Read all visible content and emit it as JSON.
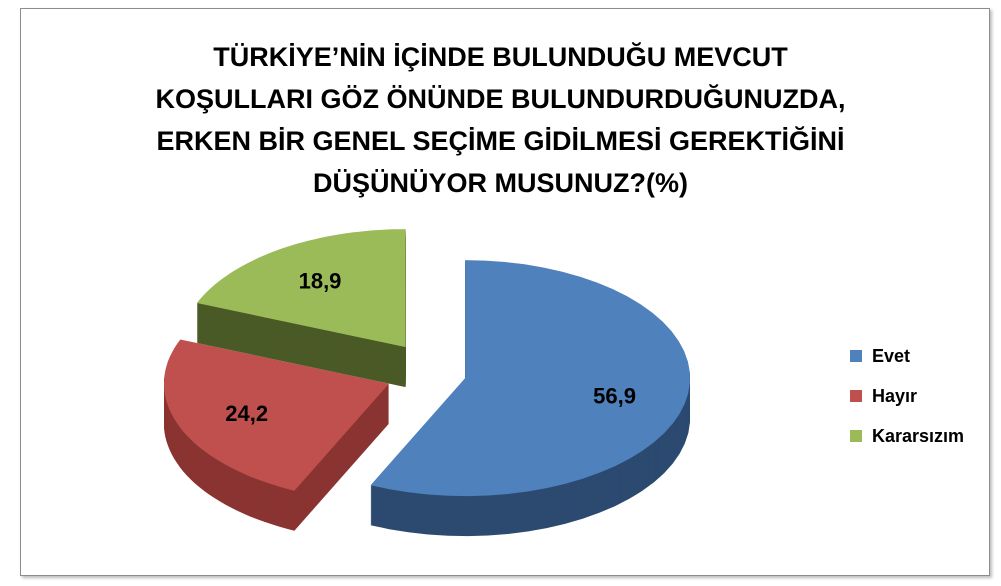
{
  "chart_data": {
    "type": "pie",
    "title_lines": [
      "TÜRKİYE’NİN İÇİNDE BULUNDUĞU MEVCUT",
      "KOŞULLARI GÖZ ÖNÜNDE BULUNDURDUĞUNUZDA,",
      "ERKEN BİR GENEL SEÇİME GİDİLMESİ GEREKTİĞİNİ",
      "DÜŞÜNÜYOR MUSUNUZ?(%)"
    ],
    "style": "3d-exploded",
    "legend_position": "right",
    "slices": [
      {
        "label": "Evet",
        "value": 56.9,
        "display": "56,9",
        "color": "#4f81bd",
        "side": "#2c4a70"
      },
      {
        "label": "Hayır",
        "value": 24.2,
        "display": "24,2",
        "color": "#c0504d",
        "side": "#8a3432"
      },
      {
        "label": "Kararsızım",
        "value": 18.9,
        "display": "18,9",
        "color": "#9bbb59",
        "side": "#4a5a26"
      }
    ]
  }
}
